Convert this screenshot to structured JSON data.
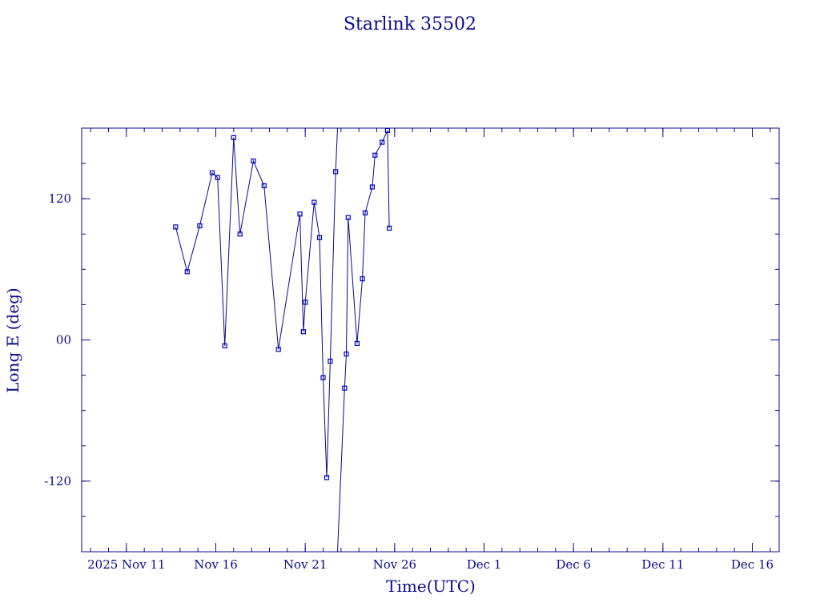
{
  "chart_data": {
    "type": "line",
    "title": "Starlink 35502",
    "xlabel": "Time(UTC)",
    "ylabel": "Long E (deg)",
    "x_unit": "days from 2025-11-01 00:00 UTC",
    "xlim": [
      8.5,
      47.5
    ],
    "ylim": [
      -180,
      180
    ],
    "x_ticks": [
      {
        "value": 11,
        "label": "2025 Nov 11"
      },
      {
        "value": 16,
        "label": "Nov 16"
      },
      {
        "value": 21,
        "label": "Nov 21"
      },
      {
        "value": 26,
        "label": "Nov 26"
      },
      {
        "value": 31,
        "label": "Dec  1"
      },
      {
        "value": 36,
        "label": "Dec  6"
      },
      {
        "value": 41,
        "label": "Dec 11"
      },
      {
        "value": 46,
        "label": "Dec 16"
      }
    ],
    "y_ticks": [
      {
        "value": 120,
        "label": "120"
      },
      {
        "value": 0,
        "label": "00"
      },
      {
        "value": -120,
        "label": "-120"
      }
    ],
    "y_minor_step": 30,
    "x_minor_step": 1,
    "grid": false,
    "legend": "none",
    "series_color": "#0000cc",
    "frame_color": "#0a0a8c",
    "series": [
      {
        "marker": "square",
        "x": [
          13.75,
          14.4,
          15.1,
          15.8,
          16.1,
          16.5,
          17.0,
          17.35,
          18.1,
          18.7,
          19.5,
          20.7,
          20.9,
          21.0,
          21.5,
          21.8,
          22.0,
          22.2,
          22.4,
          22.7,
          23.2,
          23.3,
          23.4,
          23.9,
          24.2,
          24.35,
          24.75,
          24.9,
          25.3,
          25.6,
          25.7
        ],
        "y": [
          96,
          58,
          97,
          142,
          138,
          -5,
          172,
          90,
          152,
          131,
          -8,
          107,
          7,
          32,
          117,
          87,
          -32,
          -117,
          -18,
          143,
          -41,
          -12,
          104,
          -3,
          52,
          108,
          130,
          157,
          168,
          178,
          95
        ],
        "wrap": true
      }
    ]
  }
}
